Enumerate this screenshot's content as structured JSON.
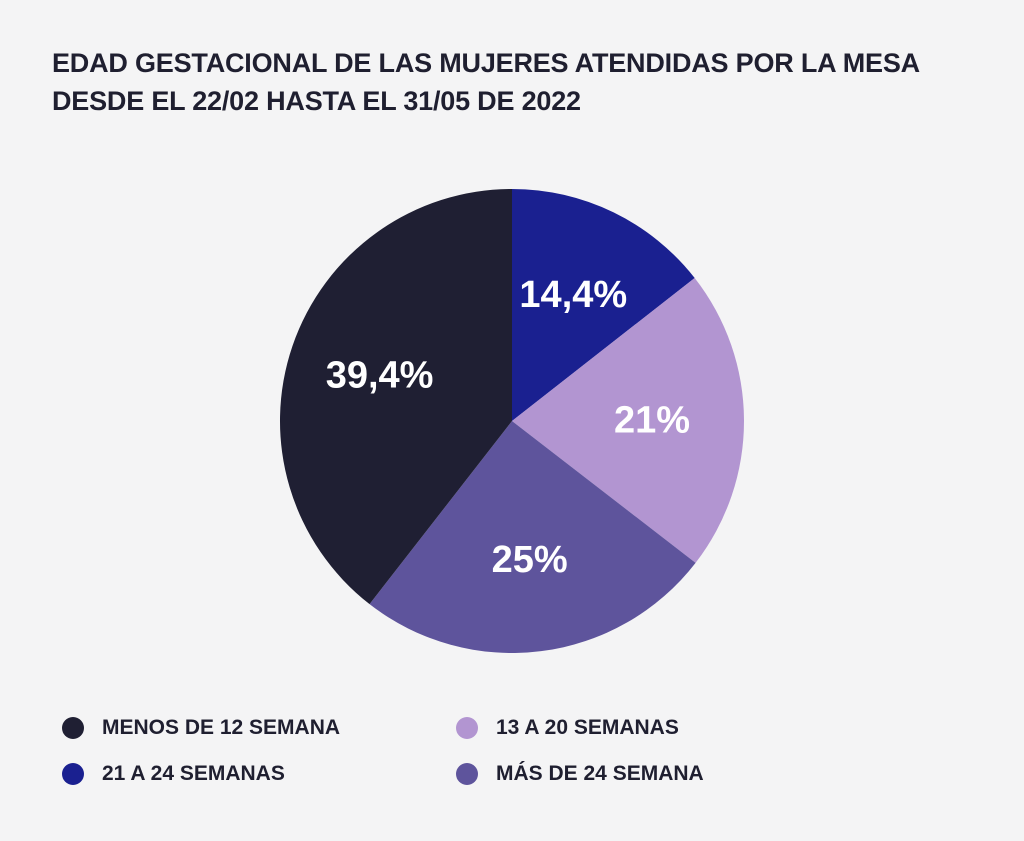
{
  "title_lines": [
    "EDAD GESTACIONAL DE LAS MUJERES ATENDIDAS POR LA MESA",
    "DESDE EL 22/02 HASTA EL 31/05 DE 2022"
  ],
  "chart_data": {
    "type": "pie",
    "title": "EDAD GESTACIONAL DE LAS MUJERES ATENDIDAS POR LA MESA DESDE EL 22/02 HASTA EL 31/05 DE 2022",
    "slices": [
      {
        "name": "21 A 24 SEMANAS",
        "value": 14.4,
        "label": "14,4%",
        "color": "#1a2090"
      },
      {
        "name": "13 A 20 SEMANAS",
        "value": 21,
        "label": "21%",
        "color": "#b295d1"
      },
      {
        "name": "MÁS DE 24 SEMANA",
        "value": 25,
        "label": "25%",
        "color": "#5e549c"
      },
      {
        "name": "MENOS DE 12 SEMANA",
        "value": 39.4,
        "label": "39,4%",
        "color": "#1f1f33"
      }
    ],
    "start_angle_deg": 0,
    "direction": "clockwise",
    "legend_position": "bottom"
  },
  "legend": [
    {
      "label": "MENOS DE 12 SEMANA",
      "color": "#1f1f33"
    },
    {
      "label": "13 A 20 SEMANAS",
      "color": "#b295d1"
    },
    {
      "label": "21 A 24 SEMANAS",
      "color": "#1a2090"
    },
    {
      "label": "MÁS DE 24 SEMANA",
      "color": "#5e549c"
    }
  ]
}
